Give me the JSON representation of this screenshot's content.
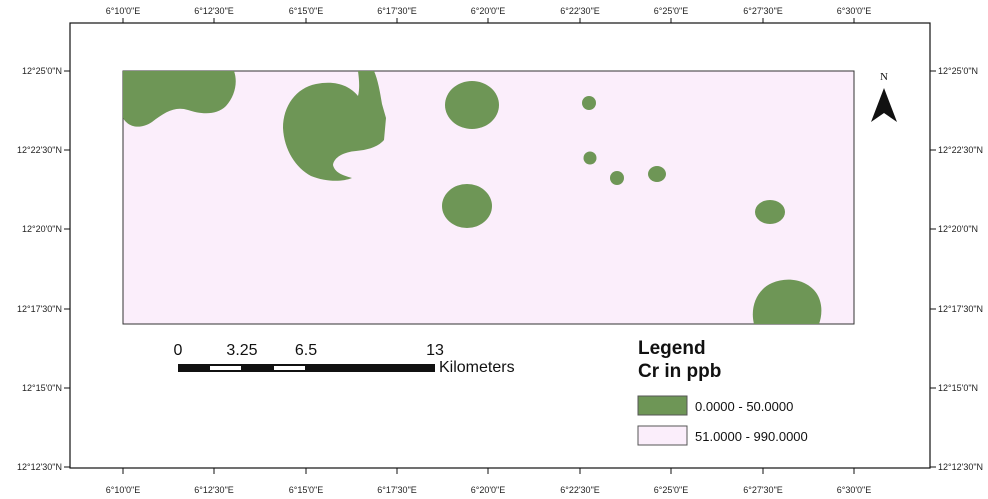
{
  "map": {
    "top_lon_labels": [
      "6°10'0\"E",
      "6°12'30\"E",
      "6°15'0\"E",
      "6°17'30\"E",
      "6°20'0\"E",
      "6°22'30\"E",
      "6°25'0\"E",
      "6°27'30\"E",
      "6°30'0\"E"
    ],
    "bottom_lon_labels": [
      "6°10'0\"E",
      "6°12'30\"E",
      "6°15'0\"E",
      "6°17'30\"E",
      "6°20'0\"E",
      "6°22'30\"E",
      "6°25'0\"E",
      "6°27'30\"E",
      "6°30'0\"E"
    ],
    "left_lat_labels": [
      "12°25'0\"N",
      "12°22'30\"N",
      "12°20'0\"N",
      "12°17'30\"N",
      "12°15'0\"N",
      "12°12'30\"N"
    ],
    "right_lat_labels": [
      "12°25'0\"N",
      "12°22'30\"N",
      "12°20'0\"N",
      "12°17'30\"N",
      "12°15'0\"N",
      "12°12'30\"N"
    ],
    "north_label": "N",
    "colors": {
      "low_class": "#6e9656",
      "high_class": "#fbeefb",
      "frame": "#111111"
    }
  },
  "scale_bar": {
    "numbers": [
      "0",
      "3.25",
      "6.5",
      "13"
    ],
    "unit": "Kilometers"
  },
  "legend": {
    "title": "Legend",
    "subtitle": "Cr in ppb",
    "items": [
      {
        "label": "0.0000 - 50.0000",
        "color": "#6e9656"
      },
      {
        "label": "51.0000 - 990.0000",
        "color": "#fbeefb"
      }
    ]
  }
}
